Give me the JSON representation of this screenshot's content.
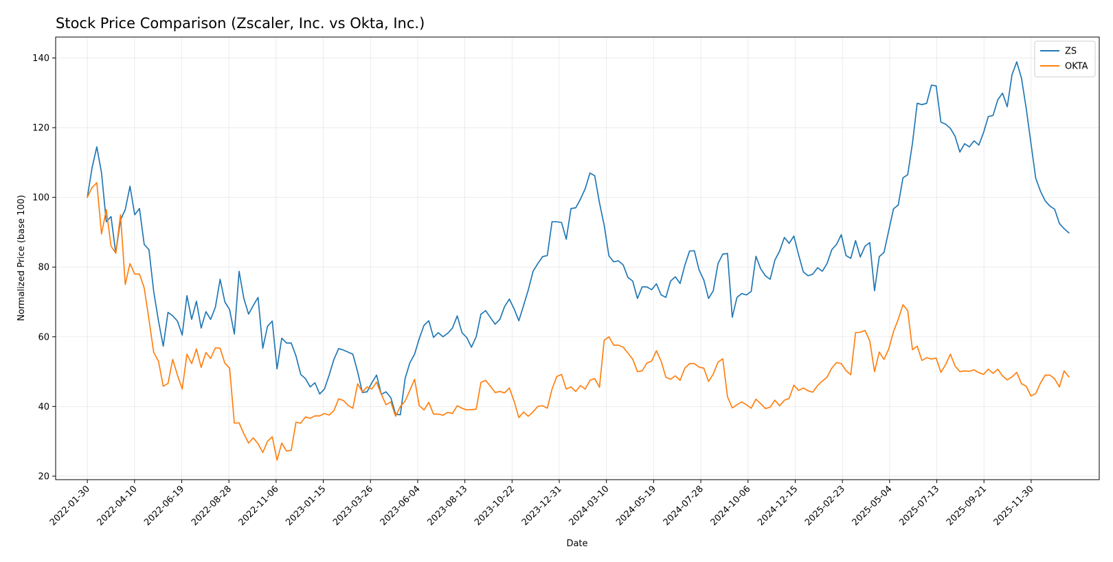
{
  "chart_data": {
    "type": "line",
    "title": "Stock Price Comparison (Zscaler, Inc. vs Okta, Inc.)",
    "xlabel": "Date",
    "ylabel": "Normalized Price (base 100)",
    "x_start": "2022-01-30",
    "x_end": "2026-01-25",
    "xlim": [
      "2021-12-14",
      "2026-03-11"
    ],
    "ylim": [
      19,
      146
    ],
    "yticks": [
      20,
      40,
      60,
      80,
      100,
      120,
      140
    ],
    "xticks": [
      "2022-01-30",
      "2022-04-10",
      "2022-06-19",
      "2022-08-28",
      "2022-11-06",
      "2023-01-15",
      "2023-03-26",
      "2023-06-04",
      "2023-08-13",
      "2023-10-22",
      "2023-12-31",
      "2024-03-10",
      "2024-05-19",
      "2024-07-28",
      "2024-10-06",
      "2024-12-15",
      "2025-02-23",
      "2025-05-04",
      "2025-07-13",
      "2025-09-21",
      "2025-11-30"
    ],
    "grid": true,
    "legend_position": "top-right",
    "series": [
      {
        "name": "ZS",
        "color": "#1f77b4",
        "values": [
          100.0,
          108.5,
          114.5,
          107.0,
          93.0,
          94.5,
          84.0,
          93.5,
          96.5,
          103.2,
          95.0,
          96.8,
          86.5,
          85.0,
          73.0,
          64.5,
          57.3,
          67.0,
          66.0,
          64.5,
          60.5,
          71.8,
          65.0,
          70.2,
          62.5,
          67.2,
          65.0,
          68.5,
          76.5,
          70.0,
          67.8,
          60.8,
          78.8,
          71.0,
          66.5,
          69.0,
          71.3,
          56.7,
          63.0,
          64.5,
          50.8,
          59.6,
          58.2,
          58.2,
          54.5,
          49.2,
          48.0,
          45.6,
          46.8,
          43.6,
          45.0,
          49.0,
          53.5,
          56.6,
          56.2,
          55.6,
          55.0,
          50.0,
          44.0,
          44.2,
          46.8,
          49.0,
          43.5,
          44.2,
          42.5,
          37.8,
          37.6,
          48.0,
          52.5,
          55.0,
          59.5,
          63.3,
          64.6,
          59.8,
          61.2,
          60.0,
          61.0,
          62.5,
          66.0,
          61.2,
          59.8,
          57.0,
          60.0,
          66.5,
          67.5,
          65.5,
          63.6,
          65.0,
          68.7,
          70.8,
          68.0,
          64.6,
          69.0,
          73.5,
          78.8,
          81.0,
          83.0,
          83.3,
          93.0,
          93.0,
          92.8,
          88.0,
          96.8,
          97.0,
          99.5,
          102.5,
          107.0,
          106.2,
          98.5,
          92.0,
          83.2,
          81.5,
          81.8,
          80.6,
          77.0,
          76.0,
          71.0,
          74.3,
          74.3,
          73.5,
          75.2,
          72.0,
          71.3,
          76.0,
          77.2,
          75.3,
          80.5,
          84.6,
          84.7,
          79.2,
          76.3,
          71.0,
          73.2,
          81.0,
          83.7,
          83.9,
          65.6,
          71.3,
          72.4,
          72.0,
          73.0,
          83.1,
          79.5,
          77.5,
          76.5,
          82.0,
          84.6,
          88.5,
          86.8,
          88.9,
          83.5,
          78.6,
          77.5,
          78.0,
          79.8,
          78.8,
          81.0,
          85.0,
          86.5,
          89.3,
          83.3,
          82.5,
          87.6,
          82.9,
          86.0,
          87.0,
          73.2,
          83.0,
          84.2,
          90.5,
          96.7,
          97.8,
          105.6,
          106.5,
          115.5,
          127.0,
          126.6,
          127.0,
          132.2,
          132.0,
          121.6,
          121.0,
          119.8,
          117.5,
          113.0,
          115.4,
          114.5,
          116.2,
          115.0,
          118.6,
          123.2,
          123.5,
          128.0,
          129.9,
          126.0,
          135.2,
          138.9,
          134.2,
          125.5,
          115.5,
          105.5,
          101.8,
          99.0,
          97.5,
          96.6,
          92.5,
          91.0,
          89.8
        ]
      },
      {
        "name": "OKTA",
        "color": "#ff7f0e",
        "values": [
          100.0,
          102.8,
          104.2,
          89.5,
          96.5,
          86.0,
          84.0,
          95.0,
          75.0,
          81.0,
          78.0,
          78.0,
          74.0,
          65.0,
          55.5,
          53.0,
          45.8,
          46.6,
          53.5,
          49.0,
          45.0,
          55.0,
          52.3,
          56.5,
          51.2,
          55.5,
          53.8,
          56.8,
          56.7,
          52.4,
          51.0,
          35.2,
          35.3,
          32.2,
          29.5,
          31.0,
          29.3,
          26.8,
          30.0,
          31.3,
          24.6,
          29.5,
          27.2,
          27.4,
          35.5,
          35.2,
          37.0,
          36.6,
          37.3,
          37.3,
          38.0,
          37.5,
          38.8,
          42.2,
          41.7,
          40.3,
          39.5,
          46.5,
          44.2,
          45.6,
          45.0,
          47.0,
          43.5,
          40.5,
          41.3,
          37.2,
          40.0,
          41.5,
          44.6,
          47.8,
          40.2,
          39.0,
          41.2,
          37.8,
          37.8,
          37.5,
          38.3,
          38.0,
          40.2,
          39.5,
          39.0,
          39.1,
          39.2,
          46.9,
          47.5,
          45.8,
          44.0,
          44.3,
          43.9,
          45.3,
          41.5,
          36.8,
          38.4,
          37.2,
          38.5,
          40.0,
          40.2,
          39.5,
          45.0,
          48.6,
          49.2,
          45.0,
          45.6,
          44.3,
          46.0,
          45.0,
          47.5,
          48.0,
          45.5,
          59.0,
          60.0,
          57.6,
          57.6,
          57.0,
          55.3,
          53.6,
          50.0,
          50.2,
          52.5,
          53.0,
          56.0,
          53.0,
          48.4,
          47.8,
          48.8,
          47.5,
          51.0,
          52.3,
          52.3,
          51.3,
          51.0,
          47.2,
          49.3,
          52.7,
          53.7,
          42.8,
          39.6,
          40.5,
          41.3,
          40.5,
          39.5,
          42.1,
          40.8,
          39.4,
          39.8,
          41.8,
          40.2,
          41.8,
          42.3,
          46.1,
          44.6,
          45.3,
          44.5,
          44.1,
          46.0,
          47.3,
          48.4,
          51.0,
          52.6,
          52.3,
          50.3,
          49.1,
          61.2,
          61.3,
          61.8,
          58.8,
          50.0,
          55.6,
          53.5,
          56.5,
          61.5,
          65.0,
          69.2,
          67.5,
          56.3,
          57.3,
          53.2,
          54.0,
          53.6,
          53.9,
          49.8,
          52.0,
          55.0,
          51.6,
          50.0,
          50.2,
          50.1,
          50.5,
          49.7,
          49.2,
          50.7,
          49.5,
          50.7,
          48.8,
          47.6,
          48.5,
          49.8,
          46.5,
          45.8,
          43.0,
          43.7,
          46.7,
          49.0,
          49.0,
          47.9,
          45.6,
          50.2,
          48.5
        ]
      }
    ]
  }
}
